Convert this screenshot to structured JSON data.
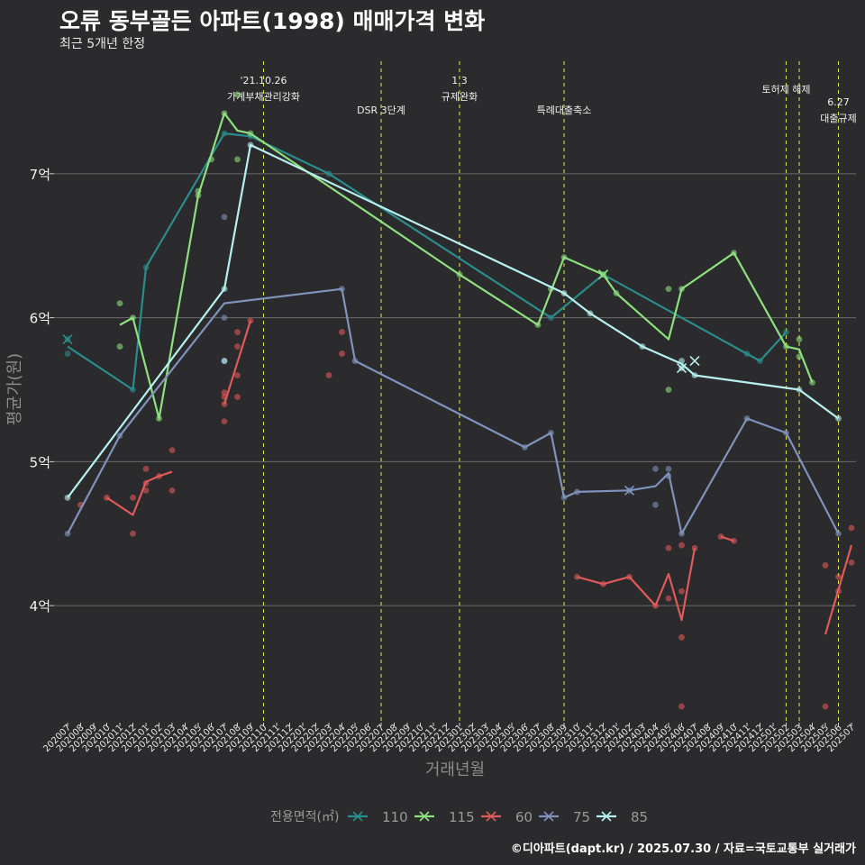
{
  "title": "오류 동부골든 아파트(1998) 매매가격 변화",
  "subtitle": "최근 5개년 한정",
  "caption": "©디아파트(dapt.kr) / 2025.07.30 / 자료=국토교통부 실거래가",
  "colors": {
    "110": "#2a8c8c",
    "115": "#8ee07e",
    "60": "#e05a5a",
    "75": "#7f93bd",
    "85": "#b6f0f0"
  },
  "chart_data": {
    "type": "line",
    "xlabel": "거래년월",
    "ylabel": "평균가(원)",
    "ylim": [
      32000,
      78000
    ],
    "yticks": [
      40000,
      50000,
      60000,
      70000
    ],
    "ytick_labels": [
      "4억",
      "5억",
      "6억",
      "7억"
    ],
    "x": [
      "202007",
      "202008",
      "202009",
      "202010",
      "202011",
      "202012",
      "202101",
      "202102",
      "202103",
      "202104",
      "202105",
      "202106",
      "202107",
      "202108",
      "202109",
      "202110",
      "202111",
      "202112",
      "202201",
      "202202",
      "202203",
      "202204",
      "202205",
      "202206",
      "202207",
      "202208",
      "202209",
      "202210",
      "202211",
      "202212",
      "202301",
      "202302",
      "202303",
      "202304",
      "202305",
      "202306",
      "202307",
      "202308",
      "202309",
      "202310",
      "202311",
      "202312",
      "202401",
      "202402",
      "202403",
      "202404",
      "202405",
      "202406",
      "202407",
      "202408",
      "202409",
      "202410",
      "202411",
      "202412",
      "202501",
      "202502",
      "202503",
      "202504",
      "202505",
      "202506",
      "202507"
    ],
    "legend_title": "전용면적(㎡)",
    "legend_position": "bottom",
    "grid": true,
    "events": [
      {
        "x": "202110",
        "label": "'21.10.26\n가계부채관리강화",
        "pos": "top"
      },
      {
        "x": "202207",
        "label": "DSR 3단계",
        "pos": "mid"
      },
      {
        "x": "202301",
        "label": "1.3\n규제완화",
        "pos": "top"
      },
      {
        "x": "202309",
        "label": "특례대출축소",
        "pos": "mid"
      },
      {
        "x": "202502",
        "label": "토허제 해제",
        "pos": "top2"
      },
      {
        "x": "202503",
        "label": "",
        "pos": "none"
      },
      {
        "x": "202506",
        "label": "6.27\n대출규제",
        "pos": "low"
      }
    ],
    "series": [
      {
        "name": "110",
        "line": [
          [
            "202007",
            58000
          ],
          [
            "202012",
            55000
          ],
          [
            "202101",
            63500
          ],
          [
            "202107",
            72800
          ],
          [
            "202109",
            72600
          ],
          [
            "202203",
            70000
          ],
          [
            "202308",
            60000
          ],
          [
            "202312",
            63000
          ],
          [
            "202411",
            57500
          ],
          [
            "202412",
            57000
          ],
          [
            "202502",
            59000
          ]
        ],
        "points": [
          [
            "202007",
            57500
          ],
          [
            "202007",
            58500
          ],
          [
            "202012",
            55000
          ],
          [
            "202101",
            63500
          ],
          [
            "202107",
            72800
          ],
          [
            "202109",
            72600
          ],
          [
            "202203",
            70000
          ],
          [
            "202308",
            60000
          ],
          [
            "202312",
            63000
          ],
          [
            "202411",
            57500
          ],
          [
            "202412",
            57000
          ],
          [
            "202502",
            59000
          ]
        ],
        "crosses": [
          [
            "202007",
            58500
          ],
          [
            "202312",
            63000
          ]
        ]
      },
      {
        "name": "115",
        "line": [
          [
            "202011",
            59500
          ],
          [
            "202012",
            60000
          ],
          [
            "202102",
            53000
          ],
          [
            "202105",
            68500
          ],
          [
            "202107",
            74200
          ],
          [
            "202108",
            73000
          ],
          [
            "202109",
            72800
          ],
          [
            "202301",
            63000
          ],
          [
            "202307",
            59500
          ],
          [
            "202309",
            64200
          ],
          [
            "202312",
            63000
          ],
          [
            "202401",
            61700
          ],
          [
            "202405",
            58500
          ],
          [
            "202406",
            62000
          ],
          [
            "202410",
            64500
          ],
          [
            "202502",
            58000
          ],
          [
            "202503",
            57800
          ],
          [
            "202504",
            55500
          ]
        ],
        "points": [
          [
            "202011",
            61000
          ],
          [
            "202011",
            58000
          ],
          [
            "202012",
            60000
          ],
          [
            "202102",
            53000
          ],
          [
            "202105",
            68800
          ],
          [
            "202105",
            68500
          ],
          [
            "202106",
            71000
          ],
          [
            "202107",
            74200
          ],
          [
            "202108",
            75500
          ],
          [
            "202108",
            71000
          ],
          [
            "202109",
            72800
          ],
          [
            "202301",
            63000
          ],
          [
            "202307",
            59500
          ],
          [
            "202308",
            62000
          ],
          [
            "202309",
            64200
          ],
          [
            "202312",
            63000
          ],
          [
            "202401",
            61700
          ],
          [
            "202405",
            62000
          ],
          [
            "202405",
            55000
          ],
          [
            "202406",
            62000
          ],
          [
            "202410",
            64500
          ],
          [
            "202502",
            58000
          ],
          [
            "202503",
            58500
          ],
          [
            "202503",
            57300
          ],
          [
            "202504",
            55500
          ]
        ],
        "crosses": [
          [
            "202312",
            63000
          ]
        ]
      },
      {
        "name": "60",
        "line": [
          [
            "202010",
            47500
          ],
          [
            "202012",
            46300
          ],
          [
            "202101",
            48600
          ],
          [
            "202102",
            49000
          ],
          [
            "202103",
            49300
          ],
          [
            "null",
            0
          ],
          [
            "202107",
            54000
          ],
          [
            "202109",
            59800
          ],
          [
            "null",
            0
          ],
          [
            "202310",
            42000
          ],
          [
            "202312",
            41500
          ],
          [
            "202402",
            42000
          ],
          [
            "202404",
            40000
          ],
          [
            "202405",
            42200
          ],
          [
            "202406",
            39000
          ],
          [
            "202407",
            44000
          ],
          [
            "null",
            0
          ],
          [
            "202409",
            44800
          ],
          [
            "202410",
            44500
          ],
          [
            "null",
            0
          ],
          [
            "202505",
            38000
          ],
          [
            "202507",
            44200
          ]
        ],
        "points": [
          [
            "202008",
            47000
          ],
          [
            "202010",
            47500
          ],
          [
            "202012",
            47500
          ],
          [
            "202012",
            45000
          ],
          [
            "202101",
            48000
          ],
          [
            "202101",
            48500
          ],
          [
            "202101",
            49500
          ],
          [
            "202102",
            49000
          ],
          [
            "202103",
            48000
          ],
          [
            "202103",
            50800
          ],
          [
            "202107",
            54000
          ],
          [
            "202107",
            54500
          ],
          [
            "202107",
            54800
          ],
          [
            "202107",
            52800
          ],
          [
            "202108",
            59000
          ],
          [
            "202108",
            58000
          ],
          [
            "202108",
            56000
          ],
          [
            "202108",
            54500
          ],
          [
            "202109",
            59800
          ],
          [
            "202203",
            56000
          ],
          [
            "202204",
            59000
          ],
          [
            "202204",
            57500
          ],
          [
            "202310",
            42000
          ],
          [
            "202312",
            41500
          ],
          [
            "202402",
            42000
          ],
          [
            "202404",
            40000
          ],
          [
            "202405",
            44000
          ],
          [
            "202405",
            40500
          ],
          [
            "202406",
            44200
          ],
          [
            "202406",
            41000
          ],
          [
            "202406",
            37800
          ],
          [
            "202406",
            33000
          ],
          [
            "202407",
            44000
          ],
          [
            "202409",
            44800
          ],
          [
            "202410",
            44500
          ],
          [
            "202505",
            42800
          ],
          [
            "202505",
            33000
          ],
          [
            "202506",
            42000
          ],
          [
            "202506",
            41000
          ],
          [
            "202507",
            45400
          ],
          [
            "202507",
            43000
          ]
        ],
        "crosses": []
      },
      {
        "name": "75",
        "line": [
          [
            "202007",
            45000
          ],
          [
            "202011",
            51800
          ],
          [
            "202107",
            61000
          ],
          [
            "202204",
            62000
          ],
          [
            "202205",
            57000
          ],
          [
            "202306",
            51000
          ],
          [
            "202308",
            52000
          ],
          [
            "202309",
            47500
          ],
          [
            "202310",
            47900
          ],
          [
            "202402",
            48000
          ],
          [
            "202404",
            48300
          ],
          [
            "202405",
            49200
          ],
          [
            "202406",
            45000
          ],
          [
            "202411",
            53000
          ],
          [
            "202502",
            52000
          ],
          [
            "202506",
            45000
          ]
        ],
        "points": [
          [
            "202007",
            45000
          ],
          [
            "202011",
            51800
          ],
          [
            "202107",
            67000
          ],
          [
            "202107",
            60000
          ],
          [
            "202107",
            57000
          ],
          [
            "202204",
            62000
          ],
          [
            "202205",
            57000
          ],
          [
            "202306",
            51000
          ],
          [
            "202308",
            52000
          ],
          [
            "202309",
            47500
          ],
          [
            "202310",
            47900
          ],
          [
            "202402",
            48000
          ],
          [
            "202404",
            49500
          ],
          [
            "202404",
            47000
          ],
          [
            "202405",
            49500
          ],
          [
            "202405",
            49000
          ],
          [
            "202406",
            45000
          ],
          [
            "202411",
            53000
          ],
          [
            "202502",
            52000
          ],
          [
            "202506",
            45000
          ]
        ],
        "crosses": [
          [
            "202402",
            48000
          ]
        ]
      },
      {
        "name": "85",
        "line": [
          [
            "202007",
            47500
          ],
          [
            "202107",
            62000
          ],
          [
            "202109",
            72000
          ],
          [
            "202309",
            61700
          ],
          [
            "202311",
            60300
          ],
          [
            "202403",
            58000
          ],
          [
            "202406",
            56800
          ],
          [
            "202407",
            56000
          ],
          [
            "202503",
            55000
          ],
          [
            "202506",
            53000
          ]
        ],
        "points": [
          [
            "202007",
            47500
          ],
          [
            "202107",
            62000
          ],
          [
            "202107",
            57000
          ],
          [
            "202109",
            72000
          ],
          [
            "202309",
            61700
          ],
          [
            "202311",
            60300
          ],
          [
            "202403",
            58000
          ],
          [
            "202406",
            57000
          ],
          [
            "202406",
            56500
          ],
          [
            "202407",
            56000
          ],
          [
            "202503",
            55000
          ],
          [
            "202506",
            53000
          ]
        ],
        "crosses": [
          [
            "202406",
            56500
          ],
          [
            "202407",
            57000
          ]
        ]
      }
    ]
  }
}
